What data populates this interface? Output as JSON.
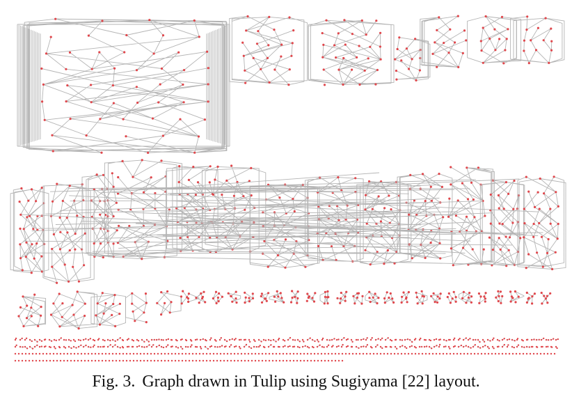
{
  "figure": {
    "label": "Fig. 3.",
    "caption": "Graph drawn in Tulip using Sugiyama [22] layout.",
    "colors": {
      "edge": "#b4b4b4",
      "node": "#e0474c",
      "background": "#ffffff"
    }
  }
}
